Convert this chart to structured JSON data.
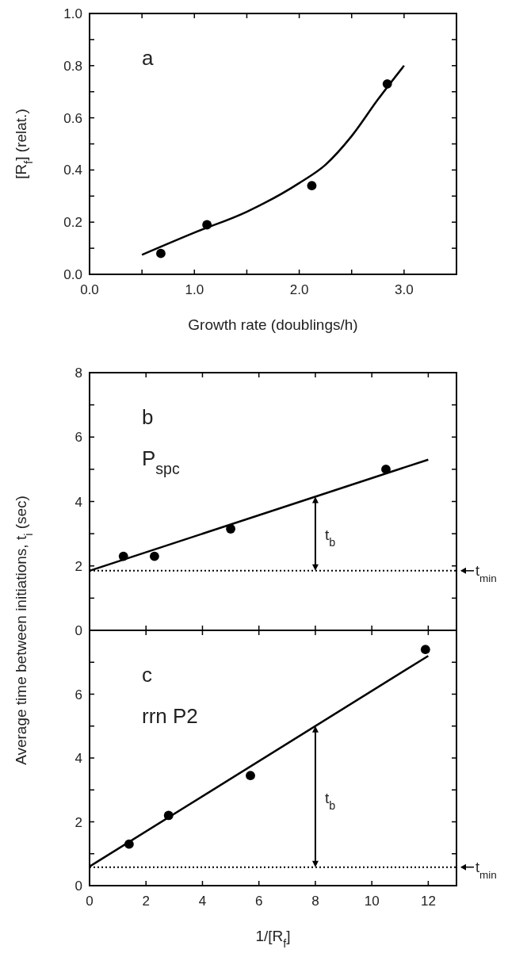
{
  "chart_data": [
    {
      "type": "scatter",
      "xlabel": "Growth rate (doublings/h)",
      "ylabel": "[R$_{f}$] (relat.)",
      "xlim": [
        0,
        3.5
      ],
      "ylim": [
        0,
        1
      ],
      "xticks": [
        {
          "value": 0,
          "label": "0.0"
        },
        {
          "value": 0.5,
          "label": null
        },
        {
          "value": 1,
          "label": "1.0"
        },
        {
          "value": 1.5,
          "label": null
        },
        {
          "value": 2,
          "label": "2.0"
        },
        {
          "value": 2.5,
          "label": null
        },
        {
          "value": 3,
          "label": "3.0"
        }
      ],
      "yticks": [
        {
          "value": 0,
          "label": "0.0"
        },
        {
          "value": 0.1,
          "label": null
        },
        {
          "value": 0.2,
          "label": "0.2"
        },
        {
          "value": 0.3,
          "label": null
        },
        {
          "value": 0.4,
          "label": "0.4"
        },
        {
          "value": 0.5,
          "label": null
        },
        {
          "value": 0.6,
          "label": "0.6"
        },
        {
          "value": 0.7,
          "label": null
        },
        {
          "value": 0.8,
          "label": "0.8"
        },
        {
          "value": 0.9,
          "label": null
        },
        {
          "value": 1,
          "label": "1.0"
        }
      ],
      "annotations": [
        "a"
      ],
      "series": [
        {
          "color": "#000000",
          "marker": "circle",
          "x": [
            0.68,
            1.12,
            2.12,
            2.84
          ],
          "values": [
            0.08,
            0.19,
            0.34,
            0.73
          ]
        },
        {
          "type": "line",
          "marker": "none",
          "color": "#000000",
          "x": [
            0.5,
            1.0,
            1.5,
            2.0,
            2.25,
            2.5,
            2.75,
            3.0
          ],
          "values": [
            0.075,
            0.16,
            0.24,
            0.35,
            0.42,
            0.53,
            0.67,
            0.8
          ]
        }
      ]
    },
    {
      "type": "scatter",
      "ylabel": "Average time between initiations, t$_{i}$ (sec)",
      "tick_labels": "y",
      "xlim": [
        0,
        13
      ],
      "ylim": [
        0,
        8
      ],
      "xticks": [
        0,
        2,
        4,
        6,
        8,
        10,
        12
      ],
      "yticks": [
        0,
        {
          "value": 1,
          "label": null
        },
        2,
        {
          "value": 3,
          "label": null
        },
        4,
        {
          "value": 5,
          "label": null
        },
        6,
        {
          "value": 7,
          "label": null
        },
        8
      ],
      "annotations": [
        "b",
        "P$_{spc}$",
        "t$_{b}$"
      ],
      "ref_lines": [
        {
          "axis": "y",
          "value": 1.85,
          "label": "t$_{min}$",
          "line_style": "dotted"
        }
      ],
      "series": [
        {
          "color": "#000000",
          "marker": "circle",
          "x": [
            1.2,
            2.3,
            5.0,
            10.5
          ],
          "values": [
            2.3,
            2.3,
            3.15,
            5.0
          ]
        },
        {
          "type": "line",
          "marker": "none",
          "color": "#000000",
          "x": [
            0,
            12
          ],
          "values": [
            1.85,
            5.3
          ]
        }
      ]
    },
    {
      "type": "scatter",
      "xlabel": "1/[R$_{f}$]",
      "xlim": [
        0,
        13
      ],
      "ylim": [
        0,
        8
      ],
      "xticks": [
        0,
        2,
        4,
        6,
        8,
        10,
        12
      ],
      "yticks": [
        0,
        {
          "value": 1,
          "label": null
        },
        2,
        {
          "value": 3,
          "label": null
        },
        4,
        {
          "value": 5,
          "label": null
        },
        6,
        {
          "value": 7,
          "label": null
        }
      ],
      "annotations": [
        "c",
        "rrn P2",
        "t$_{b}$"
      ],
      "ref_lines": [
        {
          "axis": "y",
          "value": 0.58,
          "label": "t$_{min}$",
          "line_style": "dotted"
        }
      ],
      "series": [
        {
          "color": "#000000",
          "marker": "circle",
          "x": [
            1.4,
            2.8,
            5.7,
            11.9
          ],
          "values": [
            1.3,
            2.2,
            3.45,
            7.4
          ]
        },
        {
          "type": "line",
          "marker": "none",
          "color": "#000000",
          "x": [
            0,
            12
          ],
          "values": [
            0.6,
            7.2
          ]
        }
      ]
    }
  ]
}
